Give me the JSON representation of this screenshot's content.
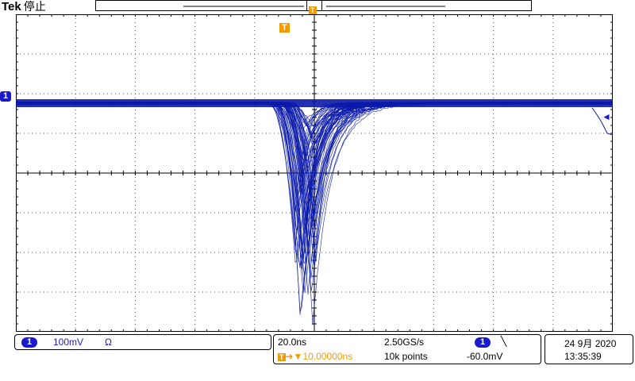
{
  "header": {
    "brand": "Tek",
    "acquisition_state": "停止"
  },
  "markers": {
    "channel1": "1",
    "trigger_pos": "T",
    "trigger_level_arrow": "◄"
  },
  "channel_panel": {
    "channel_num": "1",
    "volts_per_div": "100mV",
    "coupling_symbol": "Ω"
  },
  "timebase_panel": {
    "time_per_div": "20.0ns",
    "sample_rate": "2.50GS/s",
    "delay": "10.00000ns",
    "record_length": "10k points"
  },
  "trigger_panel": {
    "source": "1",
    "slope_symbol": "╲",
    "level": "-60.0mV"
  },
  "datetime_panel": {
    "date": "24 9月 2020",
    "time": "13:35:39"
  },
  "colors": {
    "trace": "#0a1aa8",
    "marker_orange": "#f39a00",
    "channel_pill": "#1a1acc"
  }
}
